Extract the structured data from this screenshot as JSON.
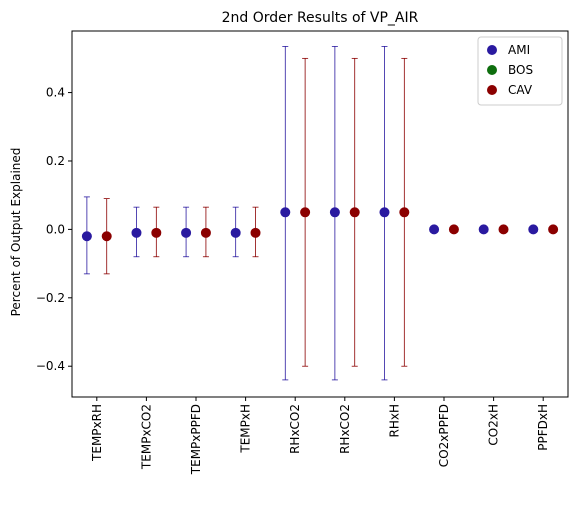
{
  "chart_data": {
    "type": "scatter",
    "title": "2nd Order Results of VP_AIR",
    "xlabel": "",
    "ylabel": "Percent of Output Explained",
    "ylim": [
      -0.49,
      0.58
    ],
    "yticks": [
      -0.4,
      -0.2,
      0.0,
      0.2,
      0.4
    ],
    "ytick_labels": [
      "−0.4",
      "−0.2",
      "0.0",
      "0.2",
      "0.4"
    ],
    "categories": [
      "TEMPxRH",
      "TEMPxCO2",
      "TEMPxPPFD",
      "TEMPxH",
      "RHxCO2",
      "RHxCO2",
      "RHxH",
      "CO2xPPFD",
      "CO2xH",
      "PPFDxH"
    ],
    "grid": false,
    "legend_position": "top-right",
    "colors": {
      "AMI": "#2a1aa0",
      "BOS": "#0e6e0e",
      "CAV": "#8b0000"
    },
    "series": [
      {
        "name": "AMI",
        "values": [
          -0.02,
          -0.01,
          -0.01,
          -0.01,
          0.05,
          0.05,
          0.05,
          0.0,
          0.0,
          0.0
        ],
        "err_low": [
          -0.13,
          -0.08,
          -0.08,
          -0.08,
          -0.44,
          -0.44,
          -0.44,
          0.0,
          0.0,
          0.0
        ],
        "err_high": [
          0.095,
          0.065,
          0.065,
          0.065,
          0.535,
          0.535,
          0.535,
          0.0,
          0.0,
          0.0
        ]
      },
      {
        "name": "BOS",
        "values": [],
        "err_low": [],
        "err_high": []
      },
      {
        "name": "CAV",
        "values": [
          -0.02,
          -0.01,
          -0.01,
          -0.01,
          0.05,
          0.05,
          0.05,
          0.0,
          0.0,
          0.0
        ],
        "err_low": [
          -0.13,
          -0.08,
          -0.08,
          -0.08,
          -0.4,
          -0.4,
          -0.4,
          0.0,
          0.0,
          0.0
        ],
        "err_high": [
          0.09,
          0.065,
          0.065,
          0.065,
          0.5,
          0.5,
          0.5,
          0.0,
          0.0,
          0.0
        ]
      }
    ]
  }
}
